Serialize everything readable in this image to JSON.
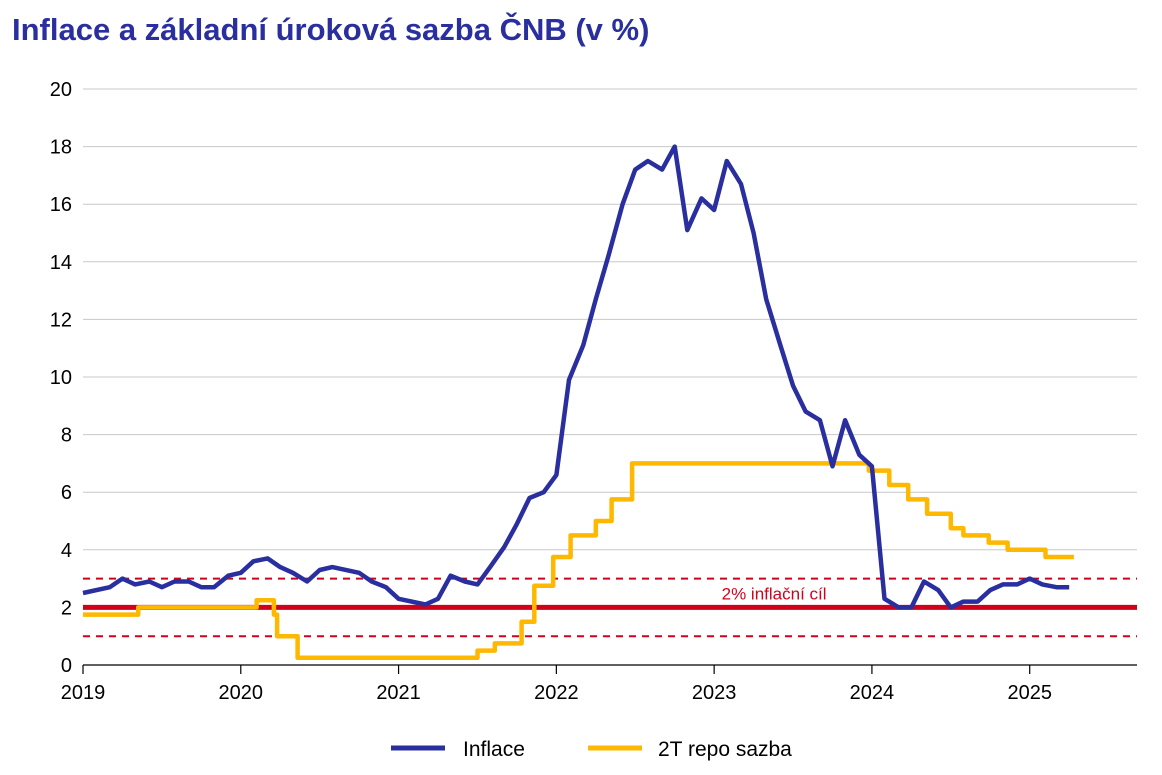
{
  "chart_data": {
    "type": "line",
    "title": "Inflace a základní úroková sazba ČNB (v %)",
    "xlabel": "",
    "ylabel": "",
    "xlim": [
      2019.0,
      2025.68
    ],
    "ylim": [
      0,
      20
    ],
    "y_ticks": [
      0,
      2,
      4,
      6,
      8,
      10,
      12,
      14,
      16,
      18,
      20
    ],
    "x_ticks": [
      2019,
      2020,
      2021,
      2022,
      2023,
      2024,
      2025
    ],
    "x_tick_labels": [
      "2019",
      "2020",
      "2021",
      "2022",
      "2023",
      "2024",
      "2025"
    ],
    "grid": "horizontal",
    "legend_position": "bottom",
    "target": {
      "label": "2% inflační cíl",
      "value": 2,
      "band": [
        1,
        3
      ],
      "color": "#d0021b"
    },
    "series": [
      {
        "name": "Inflace",
        "color": "#2a2f9f",
        "step": false,
        "points": [
          [
            2019.0,
            2.5
          ],
          [
            2019.17,
            2.7
          ],
          [
            2019.25,
            3.0
          ],
          [
            2019.33,
            2.8
          ],
          [
            2019.42,
            2.9
          ],
          [
            2019.5,
            2.7
          ],
          [
            2019.58,
            2.9
          ],
          [
            2019.67,
            2.9
          ],
          [
            2019.75,
            2.7
          ],
          [
            2019.83,
            2.7
          ],
          [
            2019.92,
            3.1
          ],
          [
            2020.0,
            3.2
          ],
          [
            2020.08,
            3.6
          ],
          [
            2020.17,
            3.7
          ],
          [
            2020.25,
            3.4
          ],
          [
            2020.33,
            3.2
          ],
          [
            2020.42,
            2.9
          ],
          [
            2020.5,
            3.3
          ],
          [
            2020.58,
            3.4
          ],
          [
            2020.75,
            3.2
          ],
          [
            2020.83,
            2.9
          ],
          [
            2020.92,
            2.7
          ],
          [
            2021.0,
            2.3
          ],
          [
            2021.17,
            2.1
          ],
          [
            2021.25,
            2.3
          ],
          [
            2021.33,
            3.1
          ],
          [
            2021.42,
            2.9
          ],
          [
            2021.5,
            2.8
          ],
          [
            2021.58,
            3.4
          ],
          [
            2021.67,
            4.1
          ],
          [
            2021.75,
            4.9
          ],
          [
            2021.83,
            5.8
          ],
          [
            2021.92,
            6.0
          ],
          [
            2022.0,
            6.6
          ],
          [
            2022.08,
            9.9
          ],
          [
            2022.17,
            11.1
          ],
          [
            2022.25,
            12.7
          ],
          [
            2022.33,
            14.2
          ],
          [
            2022.42,
            16.0
          ],
          [
            2022.5,
            17.2
          ],
          [
            2022.58,
            17.5
          ],
          [
            2022.67,
            17.2
          ],
          [
            2022.75,
            18.0
          ],
          [
            2022.83,
            15.1
          ],
          [
            2022.92,
            16.2
          ],
          [
            2023.0,
            15.8
          ],
          [
            2023.08,
            17.5
          ],
          [
            2023.17,
            16.7
          ],
          [
            2023.25,
            15.0
          ],
          [
            2023.33,
            12.7
          ],
          [
            2023.42,
            11.1
          ],
          [
            2023.5,
            9.7
          ],
          [
            2023.58,
            8.8
          ],
          [
            2023.67,
            8.5
          ],
          [
            2023.75,
            6.9
          ],
          [
            2023.83,
            8.5
          ],
          [
            2023.92,
            7.3
          ],
          [
            2024.0,
            6.9
          ],
          [
            2024.08,
            2.3
          ],
          [
            2024.17,
            2.0
          ],
          [
            2024.25,
            2.0
          ],
          [
            2024.33,
            2.9
          ],
          [
            2024.42,
            2.6
          ],
          [
            2024.5,
            2.0
          ],
          [
            2024.58,
            2.2
          ],
          [
            2024.67,
            2.2
          ],
          [
            2024.75,
            2.6
          ],
          [
            2024.83,
            2.8
          ],
          [
            2024.92,
            2.8
          ],
          [
            2025.0,
            3.0
          ],
          [
            2025.08,
            2.8
          ],
          [
            2025.17,
            2.7
          ],
          [
            2025.25,
            2.7
          ]
        ]
      },
      {
        "name": "2T repo sazba",
        "color": "#ffb800",
        "step": true,
        "points": [
          [
            2019.0,
            1.75
          ],
          [
            2019.35,
            2.0
          ],
          [
            2020.1,
            2.25
          ],
          [
            2020.21,
            1.75
          ],
          [
            2020.23,
            1.0
          ],
          [
            2020.36,
            0.25
          ],
          [
            2021.5,
            0.5
          ],
          [
            2021.61,
            0.75
          ],
          [
            2021.78,
            1.5
          ],
          [
            2021.86,
            2.75
          ],
          [
            2021.98,
            3.75
          ],
          [
            2022.09,
            4.5
          ],
          [
            2022.25,
            5.0
          ],
          [
            2022.35,
            5.75
          ],
          [
            2022.48,
            7.0
          ],
          [
            2023.98,
            6.75
          ],
          [
            2024.11,
            6.25
          ],
          [
            2024.23,
            5.75
          ],
          [
            2024.35,
            5.25
          ],
          [
            2024.5,
            4.75
          ],
          [
            2024.58,
            4.5
          ],
          [
            2024.74,
            4.25
          ],
          [
            2024.86,
            4.0
          ],
          [
            2025.1,
            3.75
          ],
          [
            2025.28,
            3.75
          ]
        ]
      }
    ]
  }
}
